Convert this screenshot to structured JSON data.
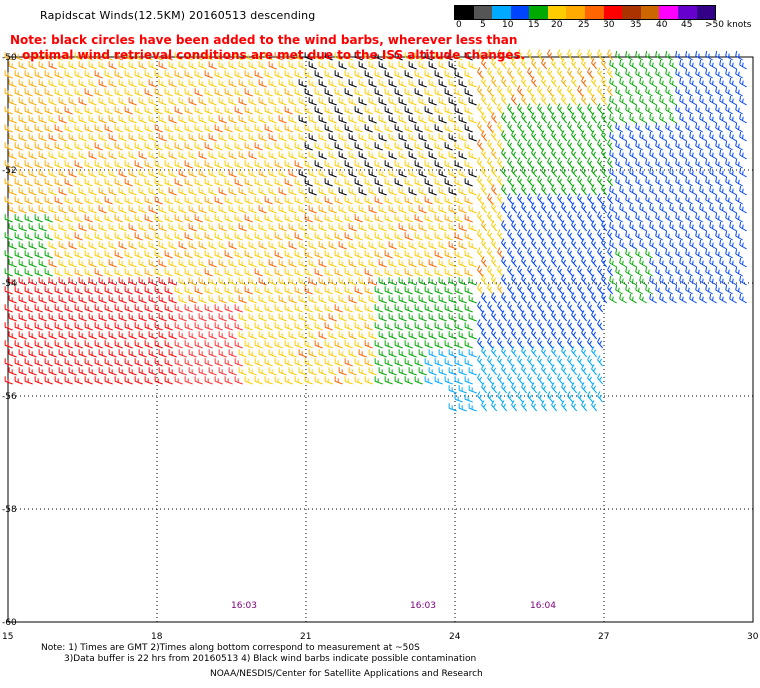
{
  "header": {
    "title": "Rapidscat Winds(12.5KM) 20160513 descending",
    "note_line1": "Note: black circles have been added to the wind barbs, wherever less than",
    "note_line2": "optimal wind retrieval conditions are met due to the ISS altitude changes."
  },
  "legend": {
    "labels": [
      "0",
      "5",
      "10",
      "15",
      "20",
      "25",
      "30",
      "35",
      "40",
      "45",
      ">50 knots"
    ],
    "colors": [
      "#000000",
      "#555555",
      "#00aaff",
      "#0044ff",
      "#00aa00",
      "#ffcc00",
      "#ffaa00",
      "#ff6600",
      "#ff0000",
      "#aa3300",
      "#cc6600",
      "#ff00ff",
      "#6600cc",
      "#330088"
    ]
  },
  "axes": {
    "x_ticks": [
      "15",
      "18",
      "21",
      "24",
      "27",
      "30"
    ],
    "y_ticks": [
      "-50",
      "-52",
      "-54",
      "-56",
      "-58",
      "-60"
    ]
  },
  "time_labels": [
    "16:03",
    "16:03",
    "16:04"
  ],
  "footer": {
    "line1": "Note: 1) Times are GMT 2)Times along bottom correspond to measurement at ~50S",
    "line2": "3)Data buffer is 22 hrs from 20160513 4) Black wind barbs indicate possible contamination",
    "line3": "NOAA/NESDIS/Center for Satellite Applications and Research"
  }
}
